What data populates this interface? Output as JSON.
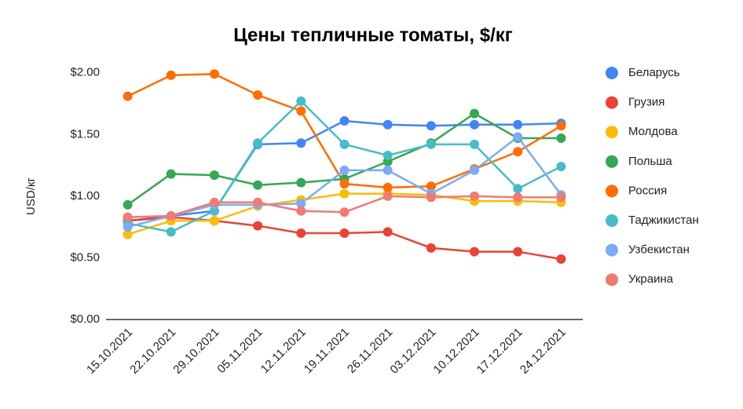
{
  "chart_data": {
    "type": "line",
    "title": "Цены  тепличные томаты, $/кг",
    "y_axis_label": "USD/кг",
    "x": [
      "15.10.2021",
      "22.10.2021",
      "29.10.2021",
      "05.11.2021",
      "12.11.2021",
      "19.11.2021",
      "26.11.2021",
      "03.12.2021",
      "10.12.2021",
      "17.12.2021",
      "24.12.2021"
    ],
    "ylim": [
      0,
      2.1
    ],
    "yticks": [
      {
        "value": 0,
        "label": "$0.00"
      },
      {
        "value": 0.5,
        "label": "$0.50"
      },
      {
        "value": 1,
        "label": "$1.00"
      },
      {
        "value": 1.5,
        "label": "$1.50"
      },
      {
        "value": 2,
        "label": "$2.00"
      }
    ],
    "legend": "right",
    "series": [
      {
        "name": "Беларусь",
        "color": "#4285f4",
        "values": [
          0.8,
          0.84,
          0.88,
          1.42,
          1.43,
          1.61,
          1.58,
          1.57,
          1.58,
          1.58,
          1.59
        ]
      },
      {
        "name": "Грузия",
        "color": "#ea4335",
        "values": [
          0.8,
          0.83,
          0.8,
          0.76,
          0.7,
          0.7,
          0.71,
          0.58,
          0.55,
          0.55,
          0.49
        ]
      },
      {
        "name": "Молдова",
        "color": "#fbbc04",
        "values": [
          0.69,
          0.8,
          0.8,
          0.92,
          0.97,
          1.02,
          1.02,
          1.01,
          0.96,
          0.96,
          0.95
        ]
      },
      {
        "name": "Польша",
        "color": "#34a853",
        "values": [
          0.93,
          1.18,
          1.17,
          1.09,
          1.11,
          1.14,
          1.28,
          1.43,
          1.67,
          1.47,
          1.47
        ]
      },
      {
        "name": "Россия",
        "color": "#ff6d01",
        "values": [
          1.81,
          1.98,
          1.99,
          1.82,
          1.69,
          1.1,
          1.07,
          1.08,
          1.22,
          1.36,
          1.57
        ]
      },
      {
        "name": "Таджикистан",
        "color": "#46bdc6",
        "values": [
          0.78,
          0.71,
          0.88,
          1.43,
          1.77,
          1.42,
          1.33,
          1.42,
          1.42,
          1.06,
          1.24
        ]
      },
      {
        "name": "Узбекистан",
        "color": "#7baaf7",
        "values": [
          0.75,
          0.84,
          0.93,
          0.93,
          0.94,
          1.21,
          1.21,
          1.02,
          1.21,
          1.48,
          1.01
        ]
      },
      {
        "name": "Украина",
        "color": "#f07b72",
        "values": [
          0.83,
          0.84,
          0.95,
          0.95,
          0.88,
          0.87,
          1.0,
          0.99,
          1.0,
          0.99,
          0.99
        ]
      }
    ]
  }
}
